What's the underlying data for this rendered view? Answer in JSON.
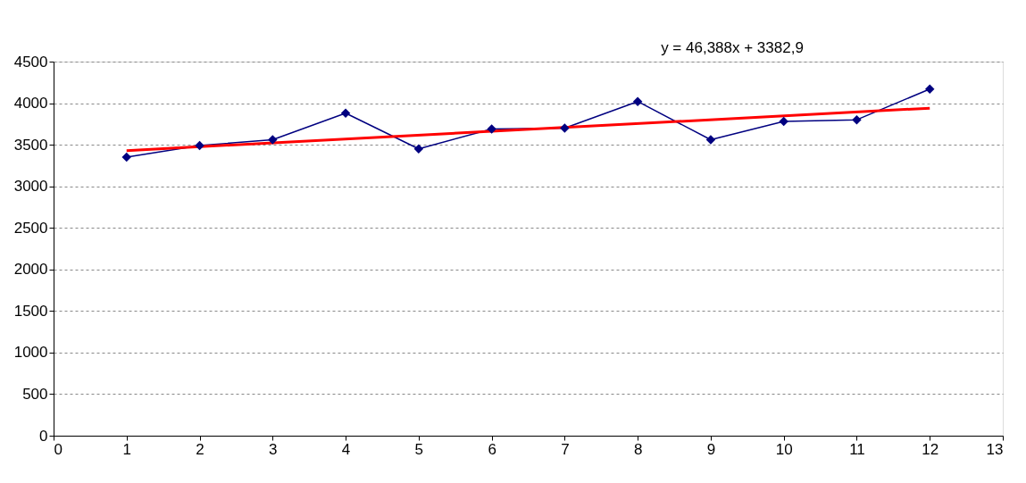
{
  "chart_data": {
    "type": "line",
    "x": [
      1,
      2,
      3,
      4,
      5,
      6,
      7,
      8,
      9,
      10,
      11,
      12
    ],
    "series": [
      {
        "color": "#000080",
        "values": [
          3350,
          3490,
          3560,
          3880,
          3450,
          3690,
          3700,
          4020,
          3560,
          3780,
          3800,
          4170
        ],
        "marker": "diamond"
      },
      {
        "type": "line",
        "color": "#ff0000",
        "x": [
          1,
          12
        ],
        "values": [
          3430,
          3940
        ],
        "marker": "none"
      }
    ],
    "xlim": [
      0,
      13
    ],
    "xticks": [
      0,
      1,
      2,
      3,
      4,
      5,
      6,
      7,
      8,
      9,
      10,
      11,
      12,
      13
    ],
    "ylim": [
      0,
      4500
    ],
    "yticks": [
      0,
      500,
      1000,
      1500,
      2000,
      2500,
      3000,
      3500,
      4000,
      4500
    ],
    "grid": "y",
    "annotations": [
      "y = 46,388x + 3382,9"
    ]
  }
}
